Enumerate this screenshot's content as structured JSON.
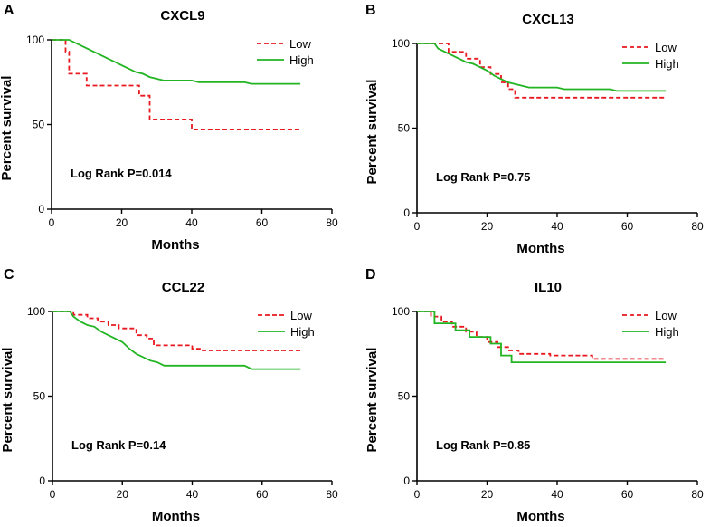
{
  "colors": {
    "low": "#e8191f",
    "high": "#22b522",
    "axis": "#000000"
  },
  "chart_data": [
    {
      "type": "line",
      "panel_letter": "A",
      "title": "CXCL9",
      "xlabel": "Months",
      "ylabel": "Percent survival",
      "xlim": [
        0,
        80
      ],
      "ylim": [
        0,
        100
      ],
      "xticks": [
        0,
        20,
        40,
        60,
        80
      ],
      "yticks": [
        0,
        50,
        100
      ],
      "annotation": "Log Rank P=0.014",
      "legend_position": "top-right",
      "series": [
        {
          "name": "Low",
          "style": "dashed",
          "points": [
            [
              0,
              100
            ],
            [
              4,
              100
            ],
            [
              4,
              93
            ],
            [
              5,
              93
            ],
            [
              5,
              80
            ],
            [
              10,
              80
            ],
            [
              10,
              73
            ],
            [
              25,
              73
            ],
            [
              25,
              67
            ],
            [
              28,
              67
            ],
            [
              28,
              53
            ],
            [
              40,
              53
            ],
            [
              40,
              47
            ],
            [
              71,
              47
            ]
          ]
        },
        {
          "name": "High",
          "style": "solid",
          "points": [
            [
              0,
              100
            ],
            [
              5,
              100
            ],
            [
              6,
              99
            ],
            [
              8,
              97
            ],
            [
              10,
              95
            ],
            [
              12,
              93
            ],
            [
              14,
              91
            ],
            [
              16,
              89
            ],
            [
              18,
              87
            ],
            [
              20,
              85
            ],
            [
              22,
              83
            ],
            [
              24,
              81
            ],
            [
              26,
              80
            ],
            [
              28,
              78
            ],
            [
              30,
              77
            ],
            [
              32,
              76
            ],
            [
              40,
              76
            ],
            [
              42,
              75
            ],
            [
              55,
              75
            ],
            [
              57,
              74
            ],
            [
              71,
              74
            ]
          ]
        }
      ]
    },
    {
      "type": "line",
      "panel_letter": "B",
      "title": "CXCL13",
      "xlabel": "Months",
      "ylabel": "Percent survival",
      "xlim": [
        0,
        80
      ],
      "ylim": [
        0,
        100
      ],
      "xticks": [
        0,
        20,
        40,
        60,
        80
      ],
      "yticks": [
        0,
        50,
        100
      ],
      "annotation": "Log Rank P=0.75",
      "legend_position": "top-right",
      "series": [
        {
          "name": "Low",
          "style": "dashed",
          "points": [
            [
              0,
              100
            ],
            [
              9,
              100
            ],
            [
              9,
              95
            ],
            [
              14,
              95
            ],
            [
              14,
              91
            ],
            [
              18,
              91
            ],
            [
              18,
              86
            ],
            [
              21,
              86
            ],
            [
              21,
              82
            ],
            [
              24,
              82
            ],
            [
              24,
              77
            ],
            [
              26,
              77
            ],
            [
              26,
              73
            ],
            [
              28,
              73
            ],
            [
              28,
              68
            ],
            [
              71,
              68
            ]
          ]
        },
        {
          "name": "High",
          "style": "solid",
          "points": [
            [
              0,
              100
            ],
            [
              5,
              100
            ],
            [
              6,
              97
            ],
            [
              8,
              95
            ],
            [
              10,
              93
            ],
            [
              12,
              91
            ],
            [
              14,
              89
            ],
            [
              16,
              88
            ],
            [
              18,
              86
            ],
            [
              20,
              84
            ],
            [
              22,
              81
            ],
            [
              24,
              79
            ],
            [
              26,
              77
            ],
            [
              28,
              76
            ],
            [
              30,
              75
            ],
            [
              32,
              74
            ],
            [
              40,
              74
            ],
            [
              42,
              73
            ],
            [
              55,
              73
            ],
            [
              57,
              72
            ],
            [
              71,
              72
            ]
          ]
        }
      ]
    },
    {
      "type": "line",
      "panel_letter": "C",
      "title": "CCL22",
      "xlabel": "Months",
      "ylabel": "Percent survival",
      "xlim": [
        0,
        80
      ],
      "ylim": [
        0,
        100
      ],
      "xticks": [
        0,
        20,
        40,
        60,
        80
      ],
      "yticks": [
        0,
        50,
        100
      ],
      "annotation": "Log Rank P=0.14",
      "legend_position": "top-right",
      "series": [
        {
          "name": "Low",
          "style": "dashed",
          "points": [
            [
              0,
              100
            ],
            [
              6,
              100
            ],
            [
              6,
              98
            ],
            [
              10,
              98
            ],
            [
              10,
              96
            ],
            [
              13,
              96
            ],
            [
              13,
              94
            ],
            [
              16,
              94
            ],
            [
              16,
              92
            ],
            [
              19,
              92
            ],
            [
              19,
              90
            ],
            [
              24,
              90
            ],
            [
              24,
              86
            ],
            [
              27,
              86
            ],
            [
              27,
              84
            ],
            [
              29,
              84
            ],
            [
              29,
              80
            ],
            [
              40,
              80
            ],
            [
              40,
              78
            ],
            [
              43,
              78
            ],
            [
              43,
              77
            ],
            [
              71,
              77
            ]
          ]
        },
        {
          "name": "High",
          "style": "solid",
          "points": [
            [
              0,
              100
            ],
            [
              5,
              100
            ],
            [
              6,
              97
            ],
            [
              8,
              94
            ],
            [
              10,
              92
            ],
            [
              12,
              91
            ],
            [
              14,
              88
            ],
            [
              16,
              86
            ],
            [
              18,
              84
            ],
            [
              20,
              82
            ],
            [
              22,
              78
            ],
            [
              24,
              75
            ],
            [
              26,
              73
            ],
            [
              28,
              71
            ],
            [
              30,
              70
            ],
            [
              32,
              68
            ],
            [
              42,
              68
            ],
            [
              55,
              68
            ],
            [
              57,
              66
            ],
            [
              71,
              66
            ]
          ]
        }
      ]
    },
    {
      "type": "line",
      "panel_letter": "D",
      "title": "IL10",
      "xlabel": "Months",
      "ylabel": "Percent survival",
      "xlim": [
        0,
        80
      ],
      "ylim": [
        0,
        100
      ],
      "xticks": [
        0,
        20,
        40,
        60,
        80
      ],
      "yticks": [
        0,
        50,
        100
      ],
      "annotation": "Log Rank P=0.85",
      "legend_position": "top-right",
      "series": [
        {
          "name": "Low",
          "style": "dashed",
          "points": [
            [
              0,
              100
            ],
            [
              4,
              100
            ],
            [
              4,
              97
            ],
            [
              7,
              97
            ],
            [
              7,
              94
            ],
            [
              10,
              94
            ],
            [
              10,
              91
            ],
            [
              14,
              91
            ],
            [
              14,
              88
            ],
            [
              17,
              88
            ],
            [
              17,
              85
            ],
            [
              20,
              85
            ],
            [
              20,
              82
            ],
            [
              23,
              82
            ],
            [
              23,
              79
            ],
            [
              26,
              79
            ],
            [
              26,
              77
            ],
            [
              29,
              77
            ],
            [
              29,
              75
            ],
            [
              38,
              75
            ],
            [
              38,
              74
            ],
            [
              50,
              74
            ],
            [
              50,
              72
            ],
            [
              71,
              72
            ]
          ]
        },
        {
          "name": "High",
          "style": "solid",
          "points": [
            [
              0,
              100
            ],
            [
              5,
              100
            ],
            [
              5,
              93
            ],
            [
              11,
              93
            ],
            [
              11,
              89
            ],
            [
              15,
              89
            ],
            [
              15,
              85
            ],
            [
              21,
              85
            ],
            [
              21,
              81
            ],
            [
              24,
              81
            ],
            [
              24,
              74
            ],
            [
              27,
              74
            ],
            [
              27,
              70
            ],
            [
              71,
              70
            ]
          ]
        }
      ]
    }
  ]
}
